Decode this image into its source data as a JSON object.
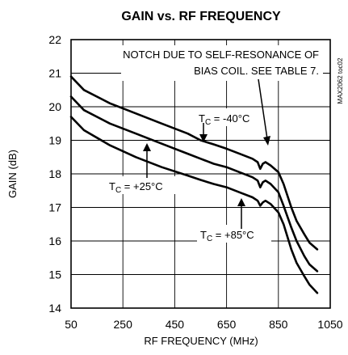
{
  "chart_data": {
    "type": "line",
    "title": "GAIN vs. RF FREQUENCY",
    "xlabel": "RF FREQUENCY (MHz)",
    "ylabel": "GAIN (dB)",
    "xlim": [
      50,
      1050
    ],
    "ylim": [
      14,
      22
    ],
    "xticks": [
      50,
      250,
      450,
      650,
      850,
      1050
    ],
    "yticks": [
      14,
      15,
      16,
      17,
      18,
      19,
      20,
      21,
      22
    ],
    "grid": true,
    "code": "MAX2062 toc02",
    "series": [
      {
        "name": "T_C = -40°C",
        "x": [
          50,
          100,
          200,
          300,
          400,
          500,
          550,
          600,
          650,
          700,
          750,
          770,
          780,
          790,
          800,
          820,
          850,
          870,
          900,
          920,
          950,
          970,
          1000
        ],
        "y": [
          20.9,
          20.5,
          20.1,
          19.8,
          19.5,
          19.2,
          19.0,
          18.88,
          18.75,
          18.6,
          18.45,
          18.35,
          18.15,
          18.3,
          18.35,
          18.25,
          18.05,
          17.7,
          17.0,
          16.6,
          16.2,
          15.95,
          15.75
        ]
      },
      {
        "name": "T_C = +25°C",
        "x": [
          50,
          100,
          200,
          300,
          400,
          500,
          550,
          600,
          650,
          700,
          750,
          770,
          780,
          790,
          800,
          820,
          850,
          870,
          900,
          920,
          950,
          970,
          1000
        ],
        "y": [
          20.3,
          19.9,
          19.5,
          19.2,
          18.9,
          18.6,
          18.45,
          18.3,
          18.2,
          18.05,
          17.9,
          17.8,
          17.6,
          17.75,
          17.8,
          17.7,
          17.45,
          17.05,
          16.4,
          16.0,
          15.55,
          15.3,
          15.1
        ]
      },
      {
        "name": "T_C = +85°C",
        "x": [
          50,
          100,
          200,
          300,
          400,
          500,
          550,
          600,
          650,
          700,
          750,
          770,
          780,
          790,
          800,
          820,
          850,
          870,
          900,
          920,
          950,
          970,
          1000
        ],
        "y": [
          19.7,
          19.3,
          18.85,
          18.5,
          18.2,
          17.95,
          17.82,
          17.7,
          17.6,
          17.45,
          17.3,
          17.2,
          17.05,
          17.15,
          17.2,
          17.1,
          16.85,
          16.5,
          15.75,
          15.35,
          14.95,
          14.7,
          14.45
        ]
      }
    ],
    "annotations": {
      "notch_line1": "NOTCH DUE TO SELF-RESONANCE OF",
      "notch_line2": "BIAS COIL. SEE TABLE 7.",
      "label_m40": "T",
      "label_m40_sub": "C",
      "label_m40_val": " = -40°C",
      "label_25": "T",
      "label_25_sub": "C",
      "label_25_val": " = +25°C",
      "label_85": "T",
      "label_85_sub": "C",
      "label_85_val": " = +85°C"
    }
  }
}
